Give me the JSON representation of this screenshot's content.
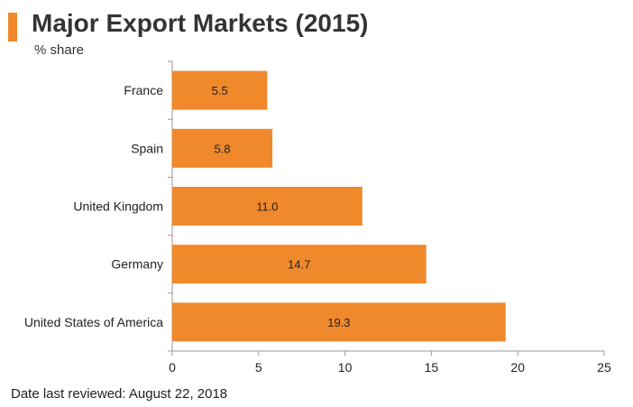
{
  "header": {
    "title": "Major Export Markets (2015)",
    "subtitle": "% share",
    "accent_color": "#F0892C"
  },
  "footer": {
    "text": "Date last reviewed: August 22, 2018"
  },
  "chart_data": {
    "type": "bar",
    "orientation": "horizontal",
    "title": "Major Export Markets (2015)",
    "subtitle": "% share",
    "categories": [
      "France",
      "Spain",
      "United Kingdom",
      "Germany",
      "United States of America"
    ],
    "values": [
      5.5,
      5.8,
      11.0,
      14.7,
      19.3
    ],
    "value_labels": [
      "5.5",
      "5.8",
      "11.0",
      "14.7",
      "19.3"
    ],
    "xlim": [
      0,
      25
    ],
    "xticks": [
      0,
      5,
      10,
      15,
      20,
      25
    ],
    "grid": false,
    "legend": "none",
    "bar_color": "#F0892C"
  }
}
